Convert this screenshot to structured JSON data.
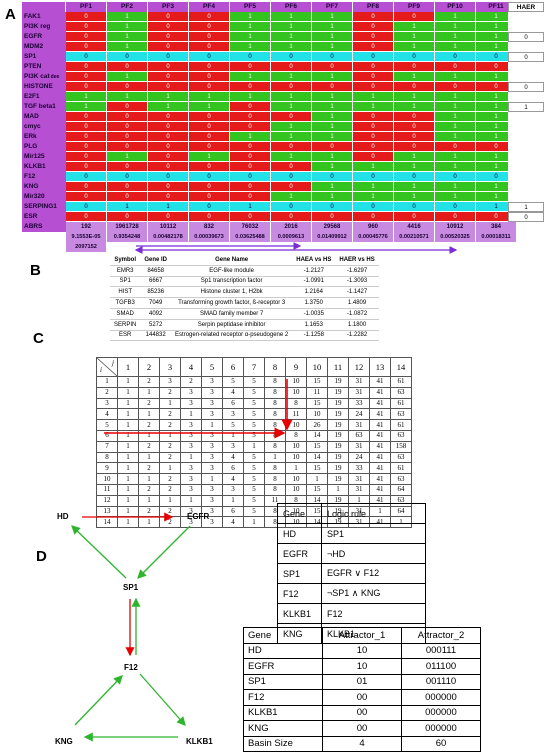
{
  "panel_labels": {
    "a": "A",
    "b": "B",
    "c": "C",
    "d": "D"
  },
  "panel_a": {
    "columns": [
      "PF1",
      "PF2",
      "PF3",
      "PF4",
      "PF5",
      "PF6",
      "PF7",
      "PF8",
      "PF9",
      "PF10",
      "PF11"
    ],
    "haer_header": "HAER",
    "rows": [
      {
        "label": "FAK1",
        "values": [
          "0",
          "1",
          "0",
          "0",
          "1",
          "1",
          "1",
          "0",
          "0",
          "1",
          "1"
        ],
        "colors": [
          "r",
          "g",
          "r",
          "r",
          "g",
          "g",
          "g",
          "r",
          "r",
          "g",
          "g"
        ],
        "haer": ""
      },
      {
        "label": "PI3K reg",
        "values": [
          "0",
          "1",
          "0",
          "0",
          "1",
          "1",
          "1",
          "0",
          "1",
          "1",
          "1"
        ],
        "colors": [
          "r",
          "g",
          "r",
          "r",
          "g",
          "g",
          "g",
          "r",
          "g",
          "g",
          "g"
        ],
        "haer": ""
      },
      {
        "label": "EGFR",
        "values": [
          "0",
          "1",
          "0",
          "0",
          "1",
          "1",
          "1",
          "0",
          "1",
          "1",
          "1"
        ],
        "colors": [
          "r",
          "g",
          "r",
          "r",
          "g",
          "g",
          "g",
          "r",
          "g",
          "g",
          "g"
        ],
        "haer": "0"
      },
      {
        "label": "MDM2",
        "values": [
          "0",
          "1",
          "0",
          "0",
          "1",
          "1",
          "1",
          "0",
          "1",
          "1",
          "1"
        ],
        "colors": [
          "r",
          "g",
          "r",
          "r",
          "g",
          "g",
          "g",
          "r",
          "g",
          "g",
          "g"
        ],
        "haer": ""
      },
      {
        "label": "SP1",
        "values": [
          "0",
          "0",
          "0",
          "0",
          "0",
          "0",
          "0",
          "0",
          "0",
          "0",
          "0"
        ],
        "colors": [
          "c",
          "c",
          "c",
          "c",
          "c",
          "c",
          "c",
          "c",
          "c",
          "c",
          "c"
        ],
        "haer": "0"
      },
      {
        "label": "PTEN",
        "values": [
          "0",
          "0",
          "0",
          "0",
          "0",
          "0",
          "0",
          "0",
          "0",
          "0",
          "0"
        ],
        "colors": [
          "r",
          "r",
          "r",
          "r",
          "r",
          "r",
          "r",
          "r",
          "r",
          "r",
          "r"
        ],
        "haer": ""
      },
      {
        "label": "PI3K cat",
        "values": [
          "0",
          "1",
          "0",
          "0",
          "1",
          "1",
          "1",
          "0",
          "1",
          "1",
          "1"
        ],
        "colors": [
          "r",
          "g",
          "r",
          "r",
          "g",
          "g",
          "g",
          "r",
          "g",
          "g",
          "g"
        ],
        "haer": ""
      },
      {
        "label": "HISTONE",
        "values": [
          "0",
          "0",
          "0",
          "0",
          "0",
          "0",
          "0",
          "0",
          "0",
          "0",
          "0"
        ],
        "colors": [
          "r",
          "r",
          "r",
          "r",
          "r",
          "r",
          "r",
          "r",
          "r",
          "r",
          "r"
        ],
        "haer": "0"
      },
      {
        "label": "E2F1",
        "values": [
          "1",
          "1",
          "1",
          "1",
          "1",
          "1",
          "1",
          "1",
          "1",
          "1",
          "1"
        ],
        "colors": [
          "g",
          "g",
          "g",
          "g",
          "g",
          "g",
          "g",
          "g",
          "g",
          "g",
          "g"
        ],
        "haer": ""
      },
      {
        "label": "TGF beta1",
        "values": [
          "1",
          "0",
          "1",
          "1",
          "0",
          "1",
          "1",
          "1",
          "1",
          "1",
          "1"
        ],
        "colors": [
          "g",
          "r",
          "g",
          "g",
          "r",
          "g",
          "g",
          "g",
          "g",
          "g",
          "g"
        ],
        "haer": "1"
      },
      {
        "label": "MAD",
        "values": [
          "0",
          "0",
          "0",
          "0",
          "0",
          "0",
          "1",
          "0",
          "0",
          "1",
          "1"
        ],
        "colors": [
          "r",
          "r",
          "r",
          "r",
          "r",
          "r",
          "g",
          "r",
          "r",
          "g",
          "g"
        ],
        "haer": ""
      },
      {
        "label": "cmyc",
        "values": [
          "0",
          "0",
          "0",
          "0",
          "0",
          "1",
          "1",
          "0",
          "0",
          "1",
          "1"
        ],
        "colors": [
          "r",
          "r",
          "r",
          "r",
          "r",
          "g",
          "g",
          "r",
          "r",
          "g",
          "g"
        ],
        "haer": ""
      },
      {
        "label": "ERk",
        "values": [
          "0",
          "0",
          "0",
          "0",
          "1",
          "1",
          "1",
          "0",
          "0",
          "1",
          "1"
        ],
        "colors": [
          "r",
          "r",
          "r",
          "r",
          "g",
          "g",
          "g",
          "r",
          "r",
          "g",
          "g"
        ],
        "haer": ""
      },
      {
        "label": "PLG",
        "values": [
          "0",
          "0",
          "0",
          "0",
          "0",
          "0",
          "0",
          "0",
          "0",
          "0",
          "0"
        ],
        "colors": [
          "r",
          "r",
          "r",
          "r",
          "r",
          "r",
          "r",
          "r",
          "r",
          "r",
          "r"
        ],
        "haer": ""
      },
      {
        "label": "Mir125",
        "values": [
          "0",
          "1",
          "0",
          "1",
          "0",
          "1",
          "1",
          "0",
          "1",
          "1",
          "1"
        ],
        "colors": [
          "r",
          "g",
          "r",
          "g",
          "r",
          "g",
          "g",
          "r",
          "g",
          "g",
          "g"
        ],
        "haer": ""
      },
      {
        "label": "KLKB1",
        "values": [
          "0",
          "0",
          "0",
          "0",
          "0",
          "0",
          "1",
          "1",
          "1",
          "1",
          "1"
        ],
        "colors": [
          "r",
          "r",
          "r",
          "r",
          "r",
          "r",
          "g",
          "g",
          "g",
          "g",
          "g"
        ],
        "haer": ""
      },
      {
        "label": "F12",
        "values": [
          "0",
          "0",
          "0",
          "0",
          "0",
          "0",
          "0",
          "0",
          "0",
          "0",
          "0"
        ],
        "colors": [
          "c",
          "c",
          "c",
          "c",
          "c",
          "c",
          "c",
          "c",
          "c",
          "c",
          "c"
        ],
        "haer": ""
      },
      {
        "label": "KNG",
        "values": [
          "0",
          "0",
          "0",
          "0",
          "0",
          "0",
          "1",
          "1",
          "1",
          "1",
          "1"
        ],
        "colors": [
          "r",
          "r",
          "r",
          "r",
          "r",
          "r",
          "g",
          "g",
          "g",
          "g",
          "g"
        ],
        "haer": ""
      },
      {
        "label": "Mir320",
        "values": [
          "0",
          "0",
          "0",
          "0",
          "0",
          "1",
          "1",
          "1",
          "1",
          "1",
          "1"
        ],
        "colors": [
          "r",
          "r",
          "r",
          "r",
          "r",
          "g",
          "g",
          "g",
          "g",
          "g",
          "g"
        ],
        "haer": ""
      },
      {
        "label": "SERPING1",
        "values": [
          "0",
          "1",
          "1",
          "0",
          "1",
          "0",
          "0",
          "0",
          "0",
          "0",
          "1"
        ],
        "colors": [
          "c",
          "c",
          "c",
          "c",
          "c",
          "c",
          "c",
          "c",
          "c",
          "c",
          "c"
        ],
        "haer": "1"
      },
      {
        "label": "ESR",
        "values": [
          "0",
          "0",
          "0",
          "0",
          "0",
          "0",
          "0",
          "0",
          "0",
          "0",
          "0"
        ],
        "colors": [
          "r",
          "r",
          "r",
          "r",
          "r",
          "r",
          "r",
          "r",
          "r",
          "r",
          "r"
        ],
        "haer": "0"
      }
    ],
    "pi3k_cat_suffix": "dee",
    "abrs_label": "ABRS",
    "abrs_values": [
      "192",
      "1961728",
      "10112",
      "832",
      "76032",
      "2016",
      "29568",
      "960",
      "4416",
      "10912",
      "384"
    ],
    "hs_values": [
      "9.1553E-05",
      "0.9354248",
      "0.00482178",
      "0.00039673",
      "0.03625488",
      "0.0009613",
      "0.01409912",
      "0.00045776",
      "0.00210571",
      "0.00520325",
      "0.00018311"
    ],
    "extra_value": "2097152"
  },
  "panel_b": {
    "headers": [
      "Symbol",
      "Gene ID",
      "Gene Name",
      "HAEA vs HS",
      "HAER vs HS"
    ],
    "rows": [
      [
        "EMR3",
        "84658",
        "EGF-like module",
        "-1.2127",
        "-1.6297"
      ],
      [
        "SP1",
        "6667",
        "Sp1 transcription factor",
        "-1.0991",
        "-1.3093"
      ],
      [
        "HIST",
        "85236",
        "Histone cluster 1, H2bk",
        "1.2164",
        "-1.1427"
      ],
      [
        "TGFB3",
        "7049",
        "Transforming growth factor, ß-receptor 3",
        "1.3750",
        "1.4809"
      ],
      [
        "SMAD",
        "4092",
        "SMAD family member 7",
        "-1.0035",
        "-1.0872"
      ],
      [
        "SERPIN",
        "5272",
        "Serpin peptidase inhibitor",
        "1.1653",
        "1.1800"
      ],
      [
        "ESR",
        "144832",
        "Estrogen-related receptor α-pseudogene 2",
        "-1.1258",
        "-1.2282"
      ]
    ]
  },
  "panel_c": {
    "corner_top": "j",
    "corner_bottom": "i",
    "columns": [
      "1",
      "2",
      "3",
      "4",
      "5",
      "6",
      "7",
      "8",
      "9",
      "10",
      "11",
      "12",
      "13",
      "14"
    ],
    "rows": [
      {
        "label": "1",
        "values": [
          "1",
          "2",
          "3",
          "2",
          "3",
          "5",
          "5",
          "8",
          "10",
          "15",
          "19",
          "31",
          "41",
          "61"
        ]
      },
      {
        "label": "2",
        "values": [
          "1",
          "1",
          "2",
          "3",
          "3",
          "4",
          "5",
          "8",
          "10",
          "11",
          "19",
          "31",
          "41",
          "63"
        ]
      },
      {
        "label": "3",
        "values": [
          "1",
          "2",
          "1",
          "3",
          "3",
          "6",
          "5",
          "8",
          "8",
          "15",
          "19",
          "33",
          "41",
          "61"
        ]
      },
      {
        "label": "4",
        "values": [
          "1",
          "1",
          "2",
          "1",
          "3",
          "3",
          "5",
          "8",
          "11",
          "10",
          "19",
          "24",
          "41",
          "63"
        ]
      },
      {
        "label": "5",
        "values": [
          "1",
          "2",
          "2",
          "3",
          "1",
          "5",
          "5",
          "8",
          "10",
          "26",
          "19",
          "31",
          "41",
          "61"
        ]
      },
      {
        "label": "6",
        "values": [
          "1",
          "1",
          "1",
          "3",
          "3",
          "1",
          "5",
          "8",
          "8",
          "14",
          "19",
          "63",
          "41",
          "63"
        ]
      },
      {
        "label": "7",
        "values": [
          "1",
          "2",
          "2",
          "3",
          "3",
          "3",
          "1",
          "8",
          "10",
          "15",
          "19",
          "31",
          "41",
          "158"
        ]
      },
      {
        "label": "8",
        "values": [
          "1",
          "1",
          "2",
          "1",
          "3",
          "4",
          "5",
          "1",
          "10",
          "14",
          "19",
          "24",
          "41",
          "63"
        ]
      },
      {
        "label": "9",
        "values": [
          "1",
          "2",
          "1",
          "3",
          "3",
          "6",
          "5",
          "8",
          "1",
          "15",
          "19",
          "33",
          "41",
          "61"
        ]
      },
      {
        "label": "10",
        "values": [
          "1",
          "1",
          "2",
          "3",
          "1",
          "4",
          "5",
          "8",
          "10",
          "1",
          "19",
          "31",
          "41",
          "63"
        ]
      },
      {
        "label": "11",
        "values": [
          "1",
          "2",
          "2",
          "3",
          "3",
          "3",
          "5",
          "8",
          "10",
          "15",
          "1",
          "31",
          "41",
          "64"
        ]
      },
      {
        "label": "12",
        "values": [
          "1",
          "1",
          "1",
          "1",
          "3",
          "1",
          "5",
          "11",
          "8",
          "14",
          "19",
          "1",
          "41",
          "63"
        ]
      },
      {
        "label": "13",
        "values": [
          "1",
          "2",
          "2",
          "3",
          "3",
          "6",
          "5",
          "8",
          "10",
          "15",
          "19",
          "31",
          "1",
          "64"
        ]
      },
      {
        "label": "14",
        "values": [
          "1",
          "1",
          "2",
          "3",
          "3",
          "4",
          "1",
          "8",
          "10",
          "14",
          "19",
          "31",
          "41",
          "1"
        ]
      }
    ]
  },
  "panel_d": {
    "nodes": {
      "hd": "HD",
      "egfr": "EGFR",
      "sp1": "SP1",
      "f12": "F12",
      "kng": "KNG",
      "klkb1": "KLKB1"
    },
    "logic_headers": [
      "Gene",
      "Logic rule"
    ],
    "logic_rows": [
      [
        "HD",
        "SP1"
      ],
      [
        "EGFR",
        "¬HD"
      ],
      [
        "SP1",
        "EGFR ∨ F12"
      ],
      [
        "F12",
        "¬SP1 ∧ KNG"
      ],
      [
        "KLKB1",
        "F12"
      ],
      [
        "KNG",
        "KLKB1"
      ]
    ],
    "attractor_headers": [
      "Gene",
      "Attractor_1",
      "Attractor_2"
    ],
    "attractor_rows": [
      [
        "HD",
        "10",
        "000111"
      ],
      [
        "EGFR",
        "10",
        "011100"
      ],
      [
        "SP1",
        "01",
        "001110"
      ],
      [
        "F12",
        "00",
        "000000"
      ],
      [
        "KLKB1",
        "00",
        "000000"
      ],
      [
        "KNG",
        "00",
        "000000"
      ],
      [
        "Basin Size",
        "4",
        "60"
      ]
    ]
  },
  "colors": {
    "red": "#e51b1b",
    "green": "#33c41f",
    "cyan": "#22e2e8",
    "purple": "#b64fd1",
    "arrow_red": "#e60000",
    "arrow_green": "#2db52d",
    "arrow_purple": "#7a2bd6"
  }
}
